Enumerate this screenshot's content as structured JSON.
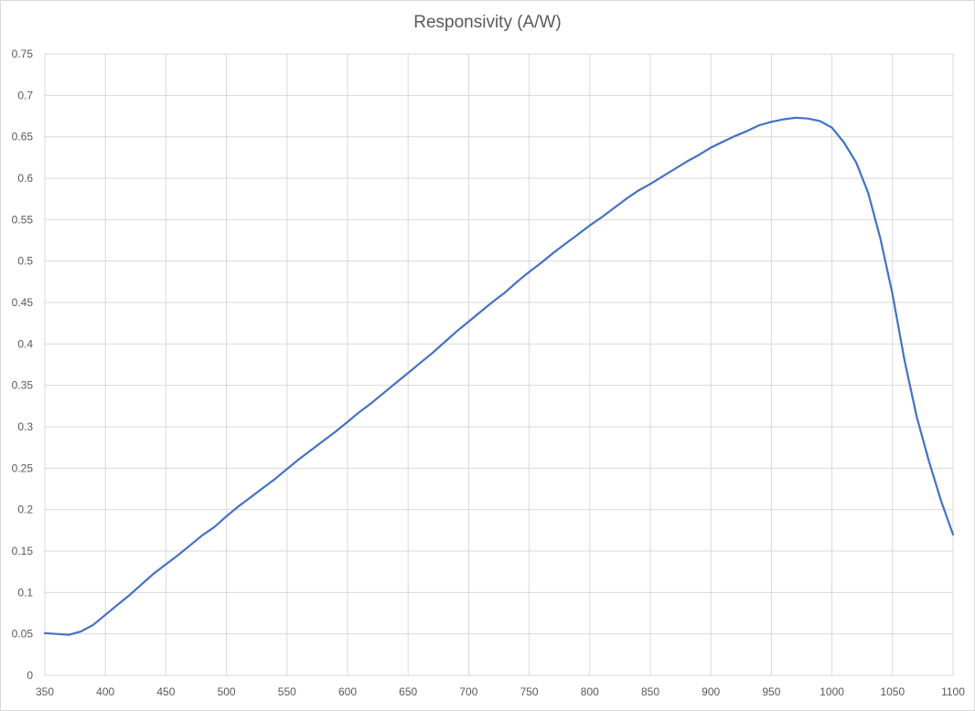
{
  "chart_data": {
    "type": "line",
    "title": "Responsivity (A/W)",
    "xlabel": "",
    "ylabel": "",
    "xlim": [
      350,
      1100
    ],
    "ylim": [
      0,
      0.75
    ],
    "x_ticks": [
      "350",
      "400",
      "450",
      "500",
      "550",
      "600",
      "650",
      "700",
      "750",
      "800",
      "850",
      "900",
      "950",
      "1000",
      "1050",
      "1100"
    ],
    "y_ticks": [
      "0",
      "0.05",
      "0.1",
      "0.15",
      "0.2",
      "0.25",
      "0.3",
      "0.35",
      "0.4",
      "0.45",
      "0.5",
      "0.55",
      "0.6",
      "0.65",
      "0.7",
      "0.75"
    ],
    "grid": true,
    "legend": "none",
    "series": [
      {
        "color": "#4472c4",
        "x": [
          350,
          360,
          370,
          380,
          390,
          400,
          410,
          420,
          430,
          440,
          450,
          460,
          470,
          480,
          490,
          500,
          510,
          520,
          530,
          540,
          550,
          560,
          570,
          580,
          590,
          600,
          610,
          620,
          630,
          640,
          650,
          660,
          670,
          680,
          690,
          700,
          710,
          720,
          730,
          740,
          750,
          760,
          770,
          780,
          790,
          800,
          810,
          820,
          830,
          840,
          850,
          860,
          870,
          880,
          890,
          900,
          910,
          920,
          930,
          940,
          950,
          960,
          970,
          980,
          990,
          1000,
          1010,
          1020,
          1030,
          1040,
          1050,
          1060,
          1070,
          1080,
          1090,
          1100
        ],
        "y": [
          0.051,
          0.05,
          0.049,
          0.053,
          0.061,
          0.073,
          0.085,
          0.097,
          0.11,
          0.123,
          0.134,
          0.145,
          0.157,
          0.169,
          0.179,
          0.192,
          0.204,
          0.215,
          0.226,
          0.237,
          0.249,
          0.261,
          0.272,
          0.283,
          0.294,
          0.306,
          0.318,
          0.329,
          0.341,
          0.353,
          0.365,
          0.377,
          0.389,
          0.402,
          0.415,
          0.427,
          0.439,
          0.451,
          0.462,
          0.475,
          0.487,
          0.498,
          0.51,
          0.521,
          0.532,
          0.543,
          0.553,
          0.564,
          0.575,
          0.585,
          0.593,
          0.602,
          0.611,
          0.62,
          0.628,
          0.637,
          0.644,
          0.651,
          0.657,
          0.664,
          0.668,
          0.671,
          0.673,
          0.672,
          0.669,
          0.661,
          0.643,
          0.619,
          0.582,
          0.527,
          0.46,
          0.38,
          0.312,
          0.259,
          0.211,
          0.17
        ]
      }
    ]
  }
}
